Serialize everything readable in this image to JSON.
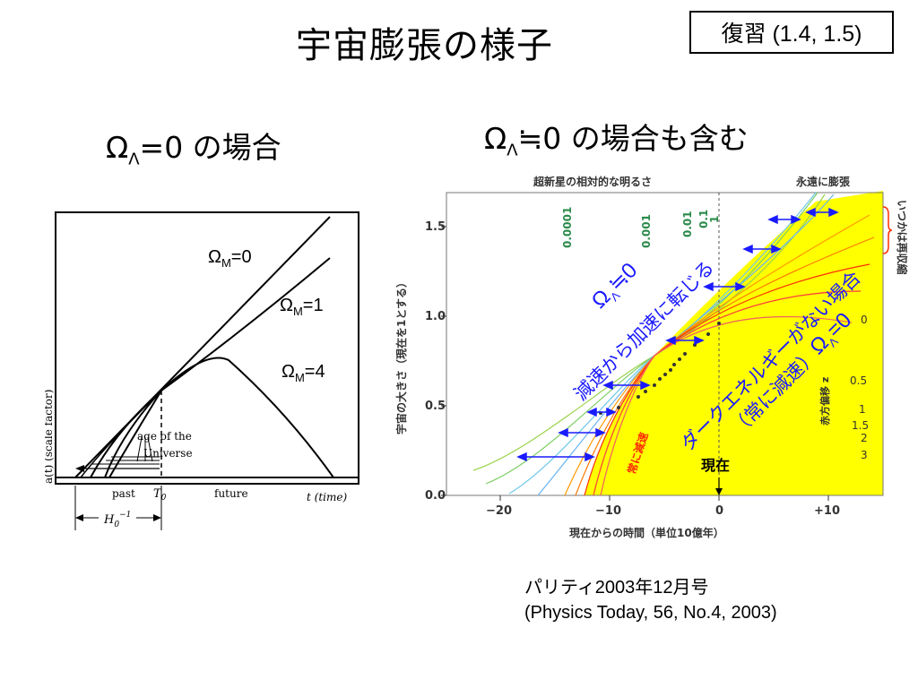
{
  "title": "宇宙膨張の様子",
  "review": "復習 (1.4, 1.5)",
  "left": {
    "heading": {
      "omega": "Ω",
      "sub": "Λ",
      "rest": "=0 の場合"
    },
    "curves": [
      {
        "omega": "Ω",
        "sub": "M",
        "value": "=0"
      },
      {
        "omega": "Ω",
        "sub": "M",
        "value": "=1"
      },
      {
        "omega": "Ω",
        "sub": "M",
        "value": "=4"
      }
    ],
    "ylabel": "a(t)   (scale factor)",
    "age_label_1": "age of the",
    "age_label_2": "Universe",
    "past": "past",
    "t0": "T",
    "t0_sub": "0",
    "future": "future",
    "t_time": "t  (time)",
    "hubble": "H",
    "hubble_sub": "0",
    "hubble_sup": "−1"
  },
  "right": {
    "heading": {
      "omega": "Ω",
      "sub": "Λ",
      "rest": "≒0 の場合も含む"
    },
    "top_axis_label": "超新星の相対的な明るさ",
    "top_right_label": "永遠に膨張",
    "brightness_labels": [
      "0.0001",
      "0.001",
      "0.01",
      "0.1",
      "1"
    ],
    "right_side_label": "いつかは再収縮",
    "ylabel": "宇宙の大きさ（現在を1とする）",
    "xlabel": "現在からの時間（単位10億年）",
    "y_ticks": [
      "0.0",
      "0.5",
      "1.0",
      "1.5"
    ],
    "x_ticks": [
      "−20",
      "−10",
      "0",
      "+10"
    ],
    "redshift_label": "赤方偏移 z",
    "redshift_ticks": [
      "0",
      "0.5",
      "1",
      "1.5",
      "2",
      "3"
    ],
    "always_decel": "常に減速",
    "now_label": "現在",
    "lambda_nonzero": {
      "omega": "Ω",
      "sub": "Λ",
      "rest": "≒0"
    },
    "decel_to_accel": "減速から加速に転じる",
    "dark_energy_none": "ダークエネルギーがない場合",
    "always_decel_paren": "（常に減速）",
    "lambda_zero": {
      "omega": "Ω",
      "sub": "Λ",
      "rest": "=0"
    }
  },
  "credit": {
    "line1": "パリティ2003年12月号",
    "line2": "(Physics Today, 56, No.4, 2003)"
  },
  "colors": {
    "fill": "#ffff00",
    "blue": "#1a1aff",
    "red": "#ff2a00"
  }
}
